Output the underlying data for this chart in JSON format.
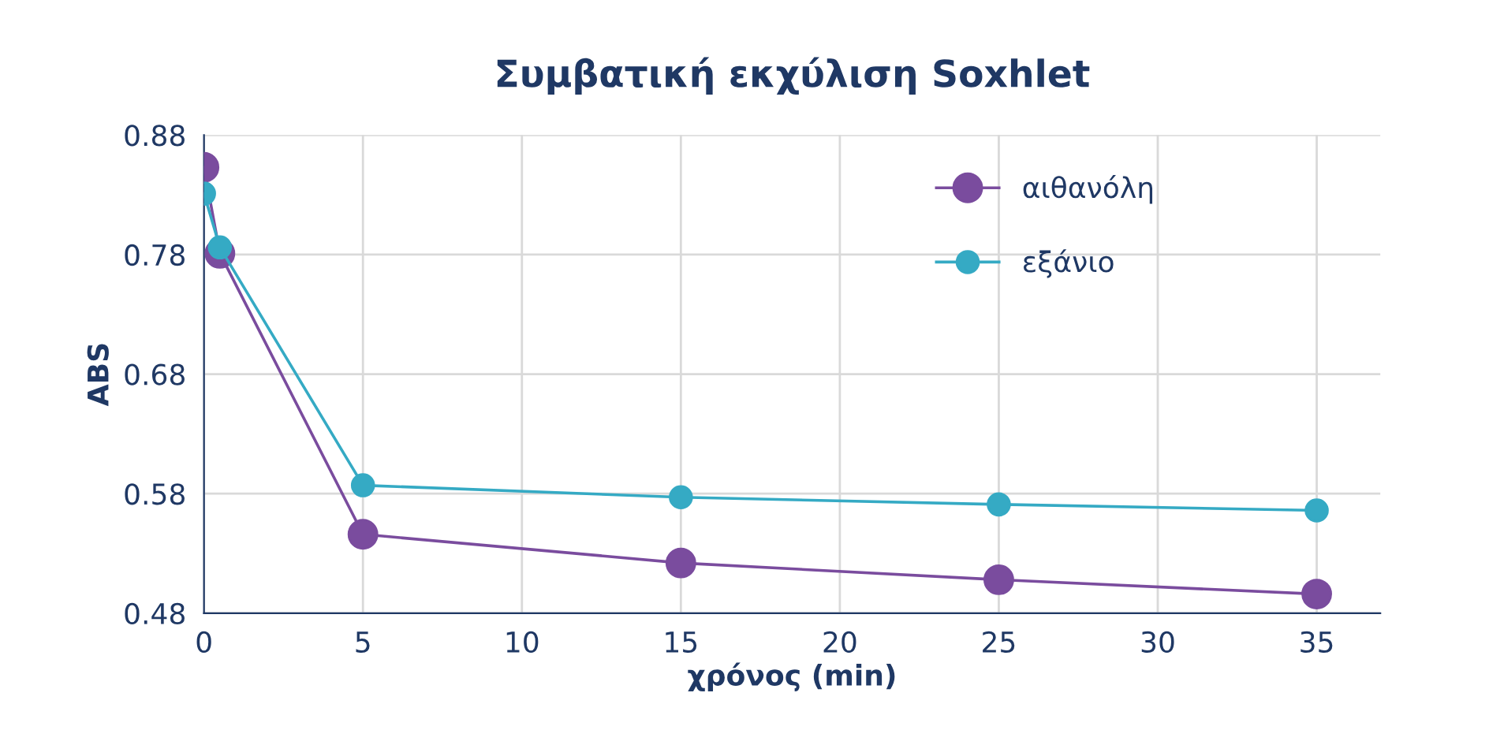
{
  "chart_data": {
    "type": "line",
    "title": "Συμβατική εκχύλιση Soxhlet",
    "xlabel": "χρόνος (min)",
    "ylabel": "ABS",
    "x": [
      0,
      0.5,
      5,
      15,
      25,
      35
    ],
    "series": [
      {
        "name": "αιθανόλη",
        "color": "#7a4c9e",
        "values": [
          0.853,
          0.781,
          0.546,
          0.522,
          0.508,
          0.496
        ]
      },
      {
        "name": "εξάνιο",
        "color": "#35aac4",
        "values": [
          0.831,
          0.786,
          0.587,
          0.577,
          0.571,
          0.566
        ]
      }
    ],
    "xlim": [
      0,
      37
    ],
    "xticks": [
      0,
      5,
      10,
      15,
      20,
      25,
      30,
      35
    ],
    "ylim": [
      0.48,
      0.88
    ],
    "yticks": [
      0.48,
      0.58,
      0.68,
      0.78,
      0.88
    ],
    "grid": true,
    "legend": "top right",
    "marker": "circle",
    "line_style": "solid"
  }
}
